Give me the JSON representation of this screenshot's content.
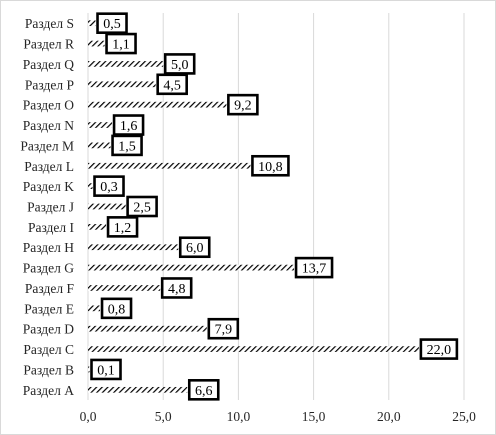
{
  "chart_data": {
    "type": "bar",
    "orientation": "horizontal",
    "categories": [
      "Раздел A",
      "Раздел B",
      "Раздел C",
      "Раздел D",
      "Раздел E",
      "Раздел F",
      "Раздел G",
      "Раздел H",
      "Раздел I",
      "Раздел J",
      "Раздел K",
      "Раздел L",
      "Раздел M",
      "Раздел N",
      "Раздел O",
      "Раздел P",
      "Раздел Q",
      "Раздел R",
      "Раздел S"
    ],
    "values": [
      6.6,
      0.1,
      22.0,
      7.9,
      0.8,
      4.8,
      13.7,
      6.0,
      1.2,
      2.5,
      0.3,
      10.8,
      1.5,
      1.6,
      9.2,
      4.5,
      5.0,
      1.1,
      0.5
    ],
    "value_labels": [
      "6,6",
      "0,1",
      "22,0",
      "7,9",
      "0,8",
      "4,8",
      "13,7",
      "6,0",
      "1,2",
      "2,5",
      "0,3",
      "10,8",
      "1,5",
      "1,6",
      "9,2",
      "4,5",
      "5,0",
      "1,1",
      "0,5"
    ],
    "x_ticks": [
      "0,0",
      "5,0",
      "10,0",
      "15,0",
      "20,0",
      "25,0"
    ],
    "xlim": [
      0,
      25
    ],
    "grid": true,
    "legend": "none",
    "bar_pattern": "diagonal-hatch",
    "colors": {
      "bar": "#000000",
      "grid": "#d9d9d9",
      "label_border": "#000000"
    },
    "title": "",
    "xlabel": "",
    "ylabel": ""
  }
}
